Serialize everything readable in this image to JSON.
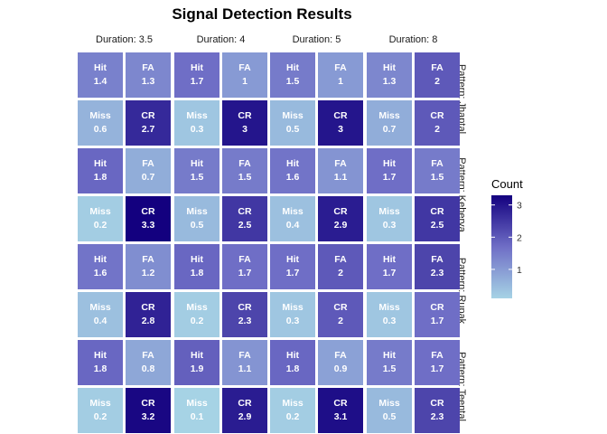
{
  "chart_data": {
    "type": "heatmap",
    "title": "Signal Detection Results",
    "column_facets": [
      "Duration: 3.5",
      "Duration: 4",
      "Duration: 5",
      "Duration: 8"
    ],
    "row_facets": [
      "Pattern: Jhaptal",
      "Pattern: Keherva",
      "Pattern: Rupak",
      "Pattern: Teental"
    ],
    "cell_layout": [
      [
        "Hit",
        "FA"
      ],
      [
        "Miss",
        "CR"
      ]
    ],
    "cells": [
      [
        {
          "Hit": 1.4,
          "FA": 1.3,
          "Miss": 0.6,
          "CR": 2.7
        },
        {
          "Hit": 1.7,
          "FA": 1,
          "Miss": 0.3,
          "CR": 3
        },
        {
          "Hit": 1.5,
          "FA": 1,
          "Miss": 0.5,
          "CR": 3
        },
        {
          "Hit": 1.3,
          "FA": 2,
          "Miss": 0.7,
          "CR": 2
        }
      ],
      [
        {
          "Hit": 1.8,
          "FA": 0.7,
          "Miss": 0.2,
          "CR": 3.3
        },
        {
          "Hit": 1.5,
          "FA": 1.5,
          "Miss": 0.5,
          "CR": 2.5
        },
        {
          "Hit": 1.6,
          "FA": 1.1,
          "Miss": 0.4,
          "CR": 2.9
        },
        {
          "Hit": 1.7,
          "FA": 1.5,
          "Miss": 0.3,
          "CR": 2.5
        }
      ],
      [
        {
          "Hit": 1.6,
          "FA": 1.2,
          "Miss": 0.4,
          "CR": 2.8
        },
        {
          "Hit": 1.8,
          "FA": 1.7,
          "Miss": 0.2,
          "CR": 2.3
        },
        {
          "Hit": 1.7,
          "FA": 2,
          "Miss": 0.3,
          "CR": 2
        },
        {
          "Hit": 1.7,
          "FA": 2.3,
          "Miss": 0.3,
          "CR": 1.7
        }
      ],
      [
        {
          "Hit": 1.8,
          "FA": 0.8,
          "Miss": 0.2,
          "CR": 3.2
        },
        {
          "Hit": 1.9,
          "FA": 1.1,
          "Miss": 0.1,
          "CR": 2.9
        },
        {
          "Hit": 1.8,
          "FA": 0.9,
          "Miss": 0.2,
          "CR": 3.1
        },
        {
          "Hit": 1.5,
          "FA": 1.7,
          "Miss": 0.5,
          "CR": 2.3
        }
      ]
    ],
    "legend": {
      "title": "Count",
      "ticks": [
        1,
        2,
        3
      ],
      "range": [
        0.1,
        3.3
      ],
      "colors": {
        "low": "#a6d3e5",
        "mid": "#6f6ec6",
        "high": "#13007f"
      }
    },
    "grid": false
  }
}
